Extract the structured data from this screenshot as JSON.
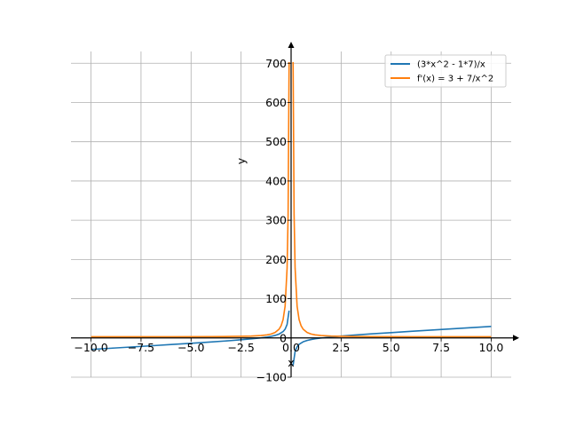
{
  "chart_data": {
    "type": "line",
    "xlabel": "x",
    "ylabel": "y",
    "xlim": [
      -11,
      11
    ],
    "ylim": [
      -100,
      730
    ],
    "grid": true,
    "legend_position": "top-right",
    "xticks": [
      -10,
      -7.5,
      -5,
      -2.5,
      0,
      2.5,
      5,
      7.5,
      10
    ],
    "xtick_labels": [
      "−10.0",
      "−7.5",
      "−5.0",
      "−2.5",
      "0.0",
      "2.5",
      "5.0",
      "7.5",
      "10.0"
    ],
    "yticks": [
      -100,
      0,
      100,
      200,
      300,
      400,
      500,
      600,
      700
    ],
    "ytick_labels": [
      "−100",
      "0",
      "100",
      "200",
      "300",
      "400",
      "500",
      "600",
      "700"
    ],
    "series": [
      {
        "name": "(3*x^2 - 1*7)/x",
        "color": "#1f77b4",
        "x": [
          -10,
          -9,
          -8,
          -7,
          -6,
          -5,
          -4,
          -3,
          -2.5,
          -2,
          -1.5,
          -1.2,
          -1,
          -0.8,
          -0.6,
          -0.4,
          -0.3,
          -0.2,
          -0.1,
          0.1,
          0.2,
          0.3,
          0.4,
          0.6,
          0.8,
          1,
          1.2,
          1.5,
          2,
          2.5,
          3,
          4,
          5,
          6,
          7,
          8,
          9,
          10
        ],
        "y": [
          -29.3,
          -26.2,
          -23.1,
          -20,
          -16.8,
          -13.6,
          -10.3,
          -6.7,
          -4.7,
          -2.5,
          0.2,
          2.2,
          4,
          6.4,
          9.9,
          16.3,
          22.4,
          34.4,
          69.7,
          -69.7,
          -34.4,
          -22.4,
          -16.3,
          -9.9,
          -6.4,
          -4,
          -2.2,
          -0.2,
          2.5,
          4.7,
          6.7,
          10.3,
          13.6,
          16.8,
          20,
          23.1,
          26.2,
          29.3
        ]
      },
      {
        "name": "f'(x) = 3 + 7/x^2",
        "color": "#ff7f0e",
        "x": [
          -10,
          -8,
          -6,
          -4,
          -3,
          -2.5,
          -2,
          -1.5,
          -1.2,
          -1,
          -0.8,
          -0.6,
          -0.5,
          -0.4,
          -0.3,
          -0.2,
          -0.15,
          -0.1,
          0.1,
          0.15,
          0.2,
          0.3,
          0.4,
          0.5,
          0.6,
          0.8,
          1,
          1.2,
          1.5,
          2,
          2.5,
          3,
          4,
          6,
          8,
          10
        ],
        "y": [
          3.07,
          3.11,
          3.19,
          3.44,
          3.78,
          4.12,
          4.75,
          6.11,
          7.86,
          10,
          13.9,
          22.4,
          31,
          46.8,
          80.8,
          178,
          314,
          703,
          703,
          314,
          178,
          80.8,
          46.8,
          31,
          22.4,
          13.9,
          10,
          7.86,
          6.11,
          4.75,
          4.12,
          3.78,
          3.44,
          3.19,
          3.11,
          3.07
        ]
      }
    ]
  }
}
